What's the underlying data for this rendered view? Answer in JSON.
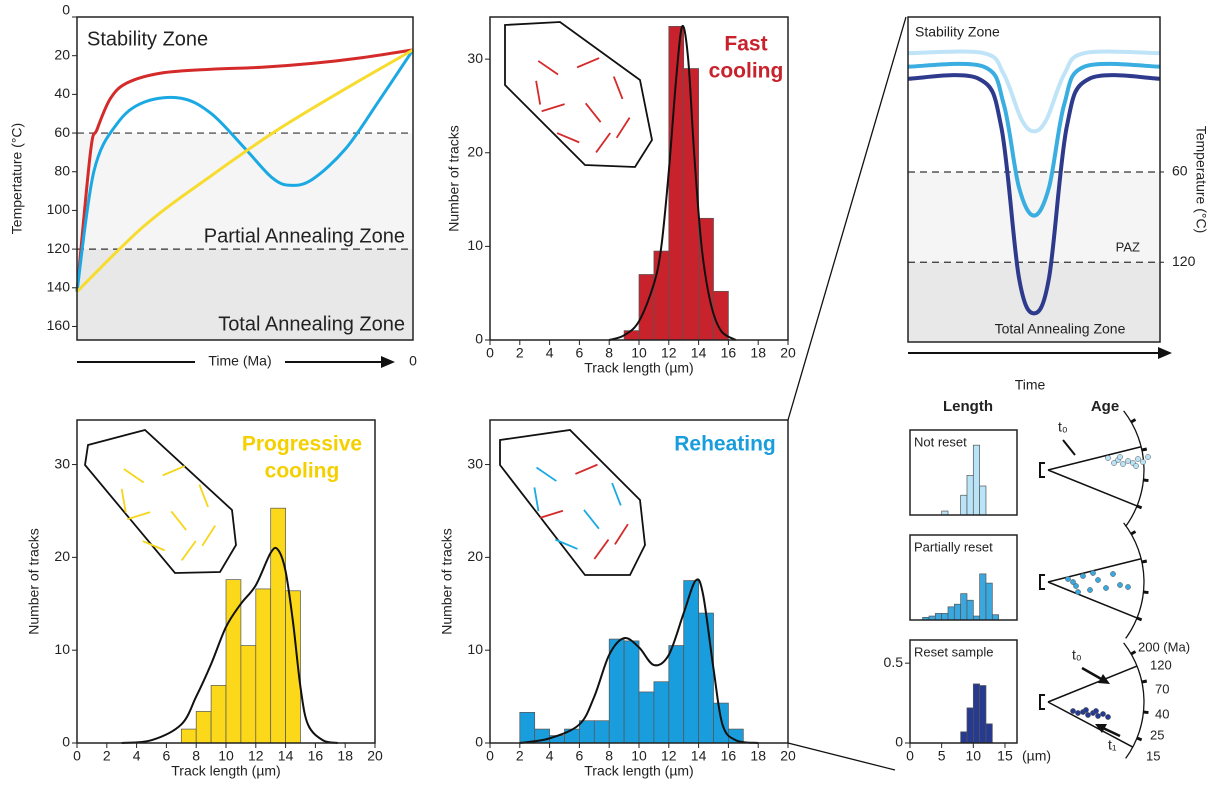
{
  "chart_data": [
    {
      "type": "line",
      "ylabel": "Tempertature (°C)",
      "xlabel": "Time (Ma)",
      "xlim": [
        1,
        0
      ],
      "xticks": [
        0
      ],
      "ylim": [
        0,
        167
      ],
      "yticks": [
        0,
        20,
        40,
        60,
        80,
        100,
        120,
        140,
        160
      ],
      "y_inverted": true,
      "hlines": [
        60,
        120
      ],
      "zone_colors": [
        "#f5f5f5",
        "#e8e8e8"
      ],
      "zone_labels": [
        "Stability Zone",
        "Partial Annealing Zone",
        "Total Annealing Zone"
      ],
      "series": [
        {
          "color": "#d42a2a",
          "x": [
            1,
            0.96,
            0.94,
            0.9,
            0.85,
            0.75,
            0.6,
            0.45,
            0.3,
            0.15,
            0
          ],
          "values": [
            142,
            70,
            58,
            42,
            34,
            29,
            27,
            26,
            24,
            21,
            17
          ]
        },
        {
          "color": "#1aa9e3",
          "x": [
            1,
            0.95,
            0.88,
            0.8,
            0.69,
            0.6,
            0.5,
            0.42,
            0.366,
            0.3,
            0.2,
            0.1,
            0
          ],
          "values": [
            142,
            80,
            55,
            44,
            42,
            50,
            68,
            83,
            87,
            84,
            68,
            43,
            17
          ]
        },
        {
          "color": "#f7dc2f",
          "x": [
            1,
            0.8,
            0.6,
            0.4,
            0.2,
            0
          ],
          "values": [
            142,
            108,
            82,
            58,
            37,
            17
          ]
        }
      ]
    },
    {
      "type": "histogram",
      "title": [
        "Fast",
        "cooling"
      ],
      "title_color": "#c8232c",
      "color": "#c8232c",
      "xlabel": "Track length (µm)",
      "ylabel": "Number of tracks",
      "xlim": [
        0,
        20
      ],
      "xticks": [
        0,
        2,
        4,
        6,
        8,
        10,
        12,
        14,
        16,
        18,
        20
      ],
      "ylim": [
        0,
        34.5
      ],
      "yticks": [
        0,
        10,
        20,
        30
      ],
      "bins": [
        9,
        10,
        11,
        12,
        13,
        14,
        15,
        16
      ],
      "values": [
        1,
        7,
        9.5,
        33.5,
        29,
        13,
        5.2
      ],
      "curve": {
        "x": [
          8,
          9,
          10,
          11,
          11.5,
          12,
          12.5,
          12.9,
          13.3,
          13.7,
          14.2,
          14.8,
          15.5,
          16.5
        ],
        "values": [
          0,
          0.5,
          2,
          6,
          10,
          18,
          28,
          33.5,
          30,
          20,
          10,
          4,
          1,
          0
        ]
      }
    },
    {
      "type": "histogram",
      "title": [
        "Progressive",
        "cooling"
      ],
      "title_color": "#f5d000",
      "color": "#fcd81a",
      "xlabel": "Track length (µm)",
      "ylabel": "Number of tracks",
      "xlim": [
        0,
        20
      ],
      "xticks": [
        0,
        2,
        4,
        6,
        8,
        10,
        12,
        14,
        16,
        18,
        20
      ],
      "ylim": [
        0,
        34.8
      ],
      "yticks": [
        0,
        10,
        20,
        30
      ],
      "bins": [
        7,
        8,
        9,
        10,
        11,
        12,
        13,
        14,
        15
      ],
      "values": [
        1.5,
        3.4,
        6.2,
        17.6,
        10.5,
        16.6,
        25.3,
        16.4
      ],
      "curve": {
        "x": [
          3,
          5,
          7,
          8,
          9,
          10,
          11,
          12,
          13,
          13.5,
          14,
          14.5,
          15,
          15.5,
          16.5,
          17.5
        ],
        "values": [
          0,
          0.3,
          2,
          5,
          8.5,
          12.5,
          15,
          17,
          20.5,
          20.8,
          18.5,
          13,
          6,
          2,
          0.3,
          0
        ]
      }
    },
    {
      "type": "histogram",
      "title": [
        "Reheating"
      ],
      "title_color": "#1a9ddc",
      "color": "#1a9ddc",
      "xlabel": "Track length (µm)",
      "ylabel": "Number of tracks",
      "xlim": [
        0,
        20
      ],
      "xticks": [
        0,
        2,
        4,
        6,
        8,
        10,
        12,
        14,
        16,
        18,
        20
      ],
      "ylim": [
        0,
        34.8
      ],
      "yticks": [
        0,
        10,
        20,
        30
      ],
      "bins": [
        2,
        3,
        4,
        5,
        6,
        7,
        8,
        9,
        10,
        11,
        12,
        13,
        14,
        15,
        16,
        17
      ],
      "values": [
        3.3,
        1.5,
        0.8,
        1.5,
        2.4,
        2.4,
        11.2,
        11,
        5.5,
        6.6,
        10.5,
        17.5,
        14,
        4.3,
        1.5
      ],
      "curve": {
        "x": [
          2,
          4,
          6,
          7,
          8,
          9,
          10,
          11,
          12,
          13,
          13.8,
          14.3,
          15,
          15.6,
          16.5,
          18
        ],
        "values": [
          0,
          0.5,
          2,
          5,
          9.5,
          11.3,
          10.3,
          8.4,
          9.5,
          14,
          17.5,
          16,
          8,
          2,
          0.3,
          0
        ]
      }
    },
    {
      "type": "line",
      "ylabel": "Temperature (°C)",
      "xlabel": "Time",
      "xlim": [
        0,
        1
      ],
      "ylim": [
        -43,
        173
      ],
      "yticks": [
        60,
        120
      ],
      "y_inverted": true,
      "hlines": [
        60,
        120
      ],
      "zone_colors": [
        "#f5f5f5",
        "#e8e8e8"
      ],
      "zone_labels": [
        "Stability Zone",
        "PAZ",
        "Total Annealing Zone"
      ],
      "series": [
        {
          "color": "#bfe4f7",
          "x": [
            0,
            0.3,
            0.38,
            0.45,
            0.5,
            0.55,
            0.62,
            0.7,
            1
          ],
          "values": [
            -19,
            -19,
            -5,
            25,
            33,
            25,
            -5,
            -19,
            -19
          ]
        },
        {
          "color": "#3aaee0",
          "x": [
            0,
            0.3,
            0.38,
            0.44,
            0.5,
            0.56,
            0.62,
            0.7,
            1
          ],
          "values": [
            -10,
            -10,
            15,
            70,
            89,
            70,
            15,
            -10,
            -10
          ]
        },
        {
          "color": "#2e3a8c",
          "x": [
            0,
            0.28,
            0.37,
            0.44,
            0.5,
            0.56,
            0.63,
            0.72,
            1
          ],
          "values": [
            -2,
            -2,
            30,
            130,
            154,
            130,
            30,
            -2,
            -2
          ]
        }
      ]
    },
    {
      "type": "histogram",
      "title": [
        "Not reset"
      ],
      "color": "#b9e3f7",
      "xlim": [
        0,
        16.9
      ],
      "ylim": [
        0,
        0.645
      ],
      "bins": [
        5,
        6,
        7,
        8,
        9,
        10,
        11,
        12
      ],
      "values": [
        0.03,
        0,
        0,
        0.15,
        0.3,
        0.53,
        0.22
      ]
    },
    {
      "type": "histogram",
      "title": [
        "Partially reset"
      ],
      "color": "#3aa7df",
      "xlim": [
        0,
        16.9
      ],
      "ylim": [
        0,
        0.645
      ],
      "bins": [
        2,
        3,
        4,
        5,
        6,
        7,
        8,
        9,
        10,
        11,
        12,
        13,
        14
      ],
      "values": [
        0.02,
        0.03,
        0.05,
        0.05,
        0.1,
        0.12,
        0.2,
        0.15,
        0.03,
        0.35,
        0.28,
        0.04
      ]
    },
    {
      "type": "histogram",
      "title": [
        "Reset sample"
      ],
      "color": "#263a8f",
      "xlabel": "(µm)",
      "xlim": [
        0,
        16.9
      ],
      "xticks": [
        0,
        5,
        10,
        15
      ],
      "ylim": [
        0,
        0.645
      ],
      "yticks": [
        0,
        0.5
      ],
      "bins": [
        8,
        9,
        10,
        11,
        12,
        13
      ],
      "values": [
        0.07,
        0.22,
        0.37,
        0.36,
        0.12
      ]
    }
  ],
  "age_plots": {
    "length_header": "Length",
    "age_header": "Age",
    "t0": "t₀",
    "t1": "t₁",
    "scale": [
      "200 (Ma)",
      "120",
      "70",
      "40",
      "25",
      "15"
    ]
  }
}
